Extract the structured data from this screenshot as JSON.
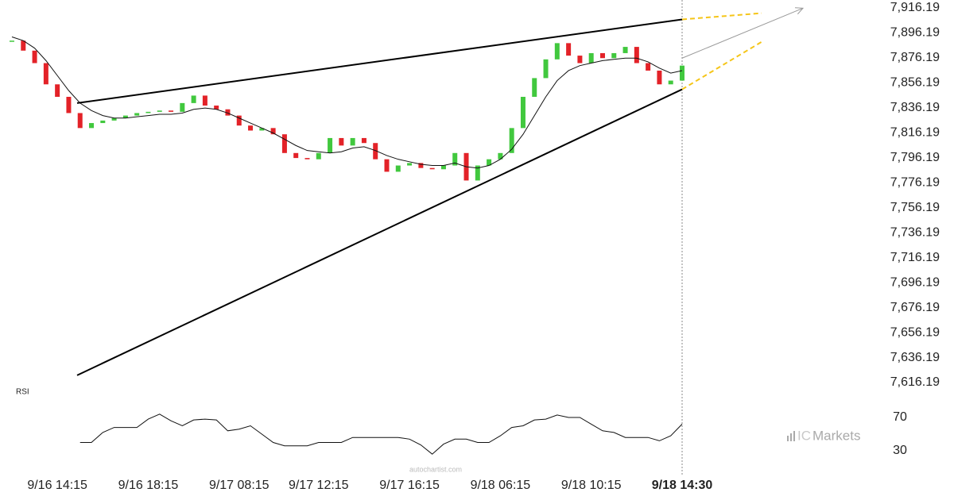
{
  "chart_data": {
    "type": "candlestick",
    "colors": {
      "up": "#41c83e",
      "down": "#e32228",
      "ma": "#111111",
      "pattern": "#000000",
      "projection": "#f5c518",
      "arrow": "#999999"
    },
    "ylim": [
      7616.19,
      7916.19
    ],
    "yticks": [
      {
        "value": 7916.19,
        "label": "7,916.19"
      },
      {
        "value": 7896.19,
        "label": "7,896.19"
      },
      {
        "value": 7876.19,
        "label": "7,876.19"
      },
      {
        "value": 7856.19,
        "label": "7,856.19"
      },
      {
        "value": 7836.19,
        "label": "7,836.19"
      },
      {
        "value": 7816.19,
        "label": "7,816.19"
      },
      {
        "value": 7796.19,
        "label": "7,796.19"
      },
      {
        "value": 7776.19,
        "label": "7,776.19"
      },
      {
        "value": 7756.19,
        "label": "7,756.19"
      },
      {
        "value": 7736.19,
        "label": "7,736.19"
      },
      {
        "value": 7716.19,
        "label": "7,716.19"
      },
      {
        "value": 7696.19,
        "label": "7,696.19"
      },
      {
        "value": 7676.19,
        "label": "7,676.19"
      },
      {
        "value": 7656.19,
        "label": "7,656.19"
      },
      {
        "value": 7636.19,
        "label": "7,636.19"
      },
      {
        "value": 7616.19,
        "label": "7,616.19"
      }
    ],
    "categories": [
      null,
      null,
      null,
      null,
      "9/16 14:15",
      null,
      null,
      null,
      null,
      null,
      null,
      null,
      "9/16 18:15",
      null,
      null,
      null,
      null,
      null,
      null,
      null,
      "9/17 08:15",
      null,
      null,
      null,
      null,
      null,
      null,
      "9/17 12:15",
      null,
      null,
      null,
      null,
      null,
      null,
      null,
      "9/17 16:15",
      null,
      null,
      null,
      null,
      null,
      null,
      null,
      "9/18 06:15",
      null,
      null,
      null,
      null,
      null,
      null,
      null,
      "9/18 10:15",
      null,
      null,
      null,
      null,
      null,
      null,
      null,
      "9/18 14:30"
    ],
    "close": [
      7890,
      7882,
      7872,
      7855,
      7845,
      7832,
      7820,
      7824,
      7826,
      7828,
      7830,
      7832,
      7833,
      7834,
      7833,
      7840,
      7846,
      7838,
      7835,
      7830,
      7822,
      7818,
      7820,
      7815,
      7800,
      7796,
      7795,
      7800,
      7812,
      7806,
      7812,
      7808,
      7795,
      7785,
      7790,
      7792,
      7788,
      7787,
      7790,
      7800,
      7778,
      7790,
      7795,
      7800,
      7820,
      7845,
      7860,
      7875,
      7888,
      7878,
      7872,
      7880,
      7876,
      7880,
      7885,
      7872,
      7866,
      7855,
      7858,
      7870
    ],
    "ma": [
      7893,
      7890,
      7884,
      7874,
      7862,
      7850,
      7840,
      7834,
      7830,
      7828,
      7828,
      7829,
      7830,
      7831,
      7831,
      7832,
      7835,
      7836,
      7835,
      7832,
      7828,
      7824,
      7820,
      7816,
      7811,
      7806,
      7802,
      7801,
      7800,
      7801,
      7804,
      7805,
      7802,
      7798,
      7795,
      7793,
      7791,
      7790,
      7790,
      7792,
      7789,
      7788,
      7790,
      7795,
      7803,
      7815,
      7830,
      7845,
      7858,
      7866,
      7870,
      7872,
      7874,
      7875,
      7876,
      7876,
      7873,
      7868,
      7864,
      7866
    ],
    "pattern": {
      "upper": [
        7840,
        7907
      ],
      "lower": [
        7622,
        7851
      ]
    },
    "projection": {
      "upper": [
        7907,
        7912
      ],
      "lower": [
        7851,
        7889
      ],
      "arrow": [
        7876,
        7916
      ]
    },
    "rsi": {
      "label": "RSI",
      "ylim": [
        20,
        95
      ],
      "yticks": [
        70,
        30
      ],
      "values": [
        null,
        null,
        null,
        null,
        null,
        null,
        40,
        40,
        52,
        58,
        58,
        58,
        68,
        74,
        66,
        60,
        67,
        68,
        67,
        54,
        56,
        60,
        50,
        40,
        36,
        36,
        36,
        40,
        40,
        40,
        46,
        46,
        46,
        46,
        46,
        44,
        37,
        26,
        38,
        44,
        44,
        40,
        40,
        48,
        58,
        60,
        67,
        68,
        73,
        70,
        70,
        62,
        54,
        52,
        46,
        46,
        46,
        42,
        48,
        62
      ]
    },
    "watermark": "autochartist.com",
    "logo": {
      "prefix": "IC",
      "suffix": "Markets"
    }
  }
}
